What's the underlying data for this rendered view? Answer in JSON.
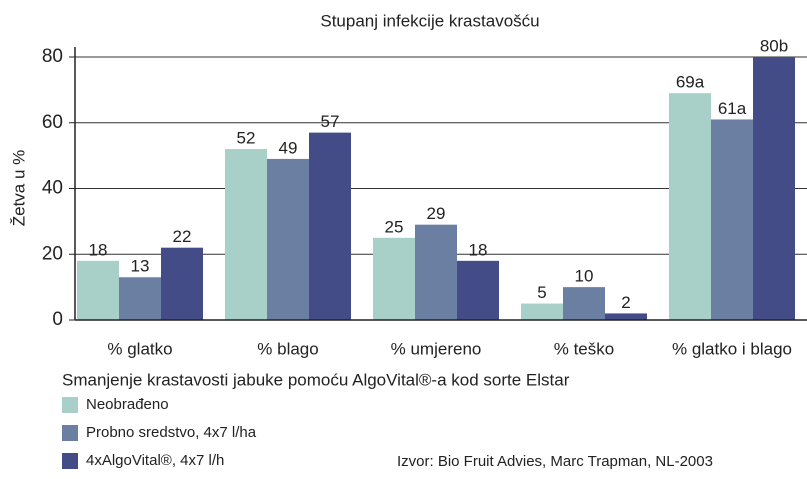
{
  "chart_data": {
    "type": "bar",
    "title": "Stupanj infekcije krastavošću",
    "ylabel": "Žetva u %",
    "subtitle": "Smanjenje krastavosti jabuke pomoću AlgoVital®-a kod sorte Elstar",
    "source": "Izvor: Bio Fruit Advies, Marc Trapman, NL-2003",
    "categories": [
      "% glatko",
      "% blago",
      "% umjereno",
      "% teško",
      "% glatko i blago"
    ],
    "series": [
      {
        "name": "Neobrađeno",
        "color": "#a8d0c8",
        "values": [
          18,
          52,
          25,
          5,
          69
        ],
        "value_labels": [
          "18",
          "52",
          "25",
          "5",
          "69a"
        ]
      },
      {
        "name": "Probno sredstvo, 4x7 l/ha",
        "color": "#6b7fa2",
        "values": [
          13,
          49,
          29,
          10,
          61
        ],
        "value_labels": [
          "13",
          "49",
          "29",
          "10",
          "61a"
        ]
      },
      {
        "name": "4xAlgoVital®, 4x7 l/h",
        "color": "#434c86",
        "values": [
          22,
          57,
          18,
          2,
          80
        ],
        "value_labels": [
          "22",
          "57",
          "18",
          "2",
          "80b"
        ]
      }
    ],
    "ylim": [
      0,
      80
    ],
    "yticks": [
      0,
      20,
      40,
      60,
      80
    ],
    "grid": true
  }
}
